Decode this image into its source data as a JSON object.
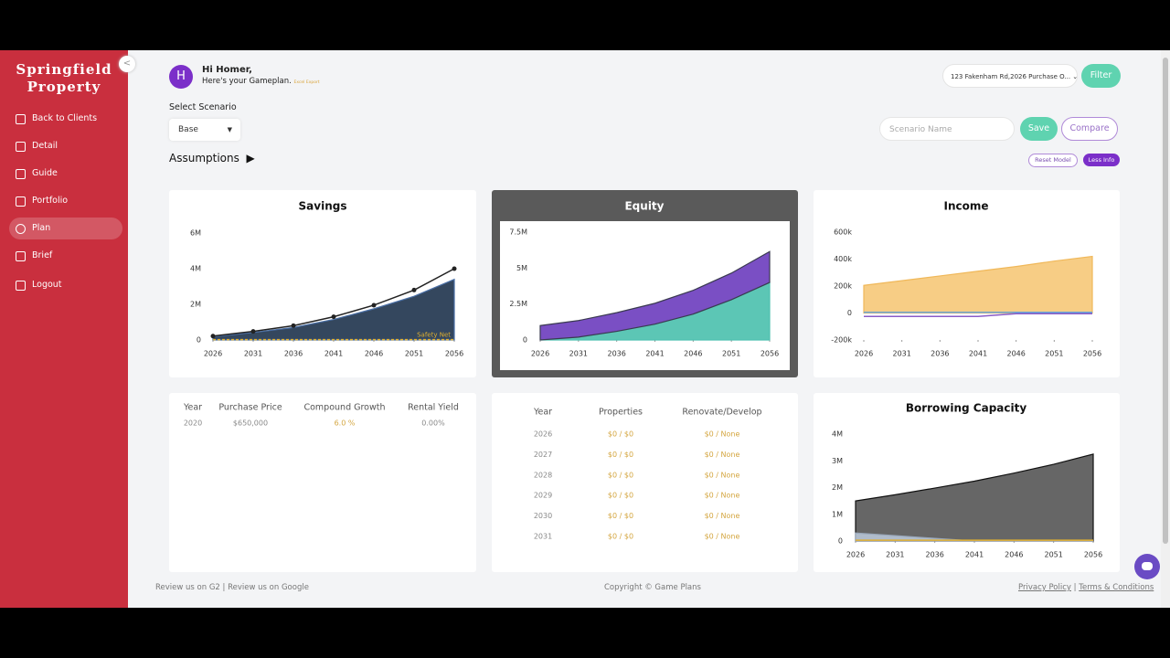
{
  "sidebar": {
    "logo": [
      "Springfield",
      "Property"
    ],
    "nav": [
      "Back to Clients",
      "Detail",
      "Guide",
      "Portfolio",
      "Plan",
      "Brief",
      "Logout"
    ]
  },
  "header": {
    "avatar": "H",
    "greeting": "Hi Homer,",
    "subtitle": "Here's your Gameplan.",
    "export": "Excel Export",
    "property_select": "123 Fakenham Rd,2026 Purchase O...",
    "filter": "Filter"
  },
  "scenario": {
    "label": "Select Scenario",
    "value": "Base",
    "name_placeholder": "Scenario Name",
    "save": "Save",
    "compare": "Compare"
  },
  "assumptions": {
    "title": "Assumptions",
    "reset": "Reset Model",
    "less_info": "Less Info"
  },
  "chart_data": [
    {
      "type": "area",
      "title": "Savings",
      "x": [
        2026,
        2031,
        2036,
        2041,
        2046,
        2051,
        2056
      ],
      "xlim": [
        2026,
        2056
      ],
      "xticks": [
        2026,
        2031,
        2036,
        2041,
        2046,
        2051,
        2056
      ],
      "ylim": [
        0,
        6000000
      ],
      "yticks": [
        0,
        {
          "value": 2000000,
          "label": "2M"
        },
        {
          "value": 4000000,
          "label": "4M"
        },
        {
          "value": 6000000,
          "label": "6M"
        }
      ],
      "series": [
        {
          "color": "#4a6fa5",
          "fill": "#34475e",
          "values": [
            180000,
            420000,
            700000,
            1150000,
            1750000,
            2450000,
            3400000
          ]
        },
        {
          "color": "#222222",
          "markers": true,
          "values": [
            220000,
            480000,
            800000,
            1300000,
            1950000,
            2800000,
            4000000
          ]
        },
        {
          "name": "Safety Net",
          "color": "#e0b030",
          "dashed": true,
          "values": [
            20000,
            20000,
            20000,
            20000,
            20000,
            20000,
            20000
          ]
        }
      ]
    },
    {
      "type": "area",
      "title": "Equity",
      "stacked": true,
      "x": [
        2026,
        2031,
        2036,
        2041,
        2046,
        2051,
        2056
      ],
      "xlim": [
        2026,
        2056
      ],
      "xticks": [
        2026,
        2031,
        2036,
        2041,
        2046,
        2051,
        2056
      ],
      "ylim": [
        0,
        7500000
      ],
      "yticks": [
        0,
        {
          "value": 2500000,
          "label": "2.5M"
        },
        {
          "value": 5000000,
          "label": "5M"
        },
        {
          "value": 7500000,
          "label": "7.5M"
        }
      ],
      "series": [
        {
          "color": "#4fc0b0",
          "fill": "#5cc6b5",
          "values": [
            0,
            200000,
            600000,
            1100000,
            1800000,
            2800000,
            4000000
          ]
        },
        {
          "color": "#3a3a50",
          "fill": "#7a4fc4",
          "values": [
            1000000,
            1150000,
            1300000,
            1450000,
            1650000,
            1850000,
            2150000
          ]
        }
      ]
    },
    {
      "type": "area",
      "title": "Income",
      "x": [
        2026,
        2031,
        2036,
        2041,
        2046,
        2051,
        2056
      ],
      "xlim": [
        2026,
        2056
      ],
      "xticks": [
        2026,
        2031,
        2036,
        2041,
        2046,
        2051,
        2056
      ],
      "ylim": [
        -200000,
        600000
      ],
      "yticks": [
        {
          "value": -200000,
          "label": "-200k"
        },
        0,
        {
          "value": 200000,
          "label": "200k"
        },
        {
          "value": 400000,
          "label": "400k"
        },
        {
          "value": 600000,
          "label": "600k"
        }
      ],
      "series": [
        {
          "color": "#f0b85a",
          "fill": "#f7cd85",
          "values": [
            205000,
            240000,
            275000,
            310000,
            345000,
            385000,
            420000
          ]
        },
        {
          "color": "#8a5cc8",
          "values": [
            -25000,
            -25000,
            -25000,
            -25000,
            -5000,
            -5000,
            -5000
          ]
        },
        {
          "color": "#6aa6d6",
          "values": [
            5000,
            5000,
            5000,
            5000,
            5000,
            5000,
            5000
          ]
        }
      ]
    },
    {
      "type": "area",
      "title": "Borrowing Capacity",
      "x": [
        2026,
        2031,
        2036,
        2041,
        2046,
        2051,
        2056
      ],
      "xlim": [
        2026,
        2056
      ],
      "xticks": [
        2026,
        2031,
        2036,
        2041,
        2046,
        2051,
        2056
      ],
      "ylim": [
        0,
        4000000
      ],
      "yticks": [
        0,
        {
          "value": 1000000,
          "label": "1M"
        },
        {
          "value": 2000000,
          "label": "2M"
        },
        {
          "value": 3000000,
          "label": "3M"
        },
        {
          "value": 4000000,
          "label": "4M"
        }
      ],
      "series": [
        {
          "color": "#111111",
          "fill": "#666666",
          "values": [
            1500000,
            1730000,
            1980000,
            2240000,
            2540000,
            2870000,
            3250000
          ]
        },
        {
          "color": "#9aa8ba",
          "fill": "#b0bccb",
          "values": [
            300000,
            200000,
            100000,
            0,
            0,
            0,
            0
          ]
        },
        {
          "color": "#e0b030",
          "values": [
            30000,
            30000,
            30000,
            30000,
            30000,
            30000,
            30000
          ]
        }
      ]
    }
  ],
  "tables": [
    {
      "headers": [
        "Year",
        "Purchase Price",
        "Compound Growth",
        "Rental Yield"
      ],
      "rows": [
        [
          "2020",
          "$650,000",
          "6.0 %",
          "0.00%"
        ]
      ]
    },
    {
      "headers": [
        "Year",
        "Properties",
        "Renovate/Develop"
      ],
      "rows": [
        [
          "2026",
          "$0 / $0",
          "$0 / None"
        ],
        [
          "2027",
          "$0 / $0",
          "$0 / None"
        ],
        [
          "2028",
          "$0 / $0",
          "$0 / None"
        ],
        [
          "2029",
          "$0 / $0",
          "$0 / None"
        ],
        [
          "2030",
          "$0 / $0",
          "$0 / None"
        ],
        [
          "2031",
          "$0 / $0",
          "$0 / None"
        ]
      ]
    }
  ],
  "footer": {
    "review_g2": "Review us on G2",
    "separator": "|",
    "review_google": "Review us on Google",
    "copyright": "Copyright © Game Plans",
    "privacy": "Privacy Policy",
    "terms": "Terms & Conditions"
  }
}
